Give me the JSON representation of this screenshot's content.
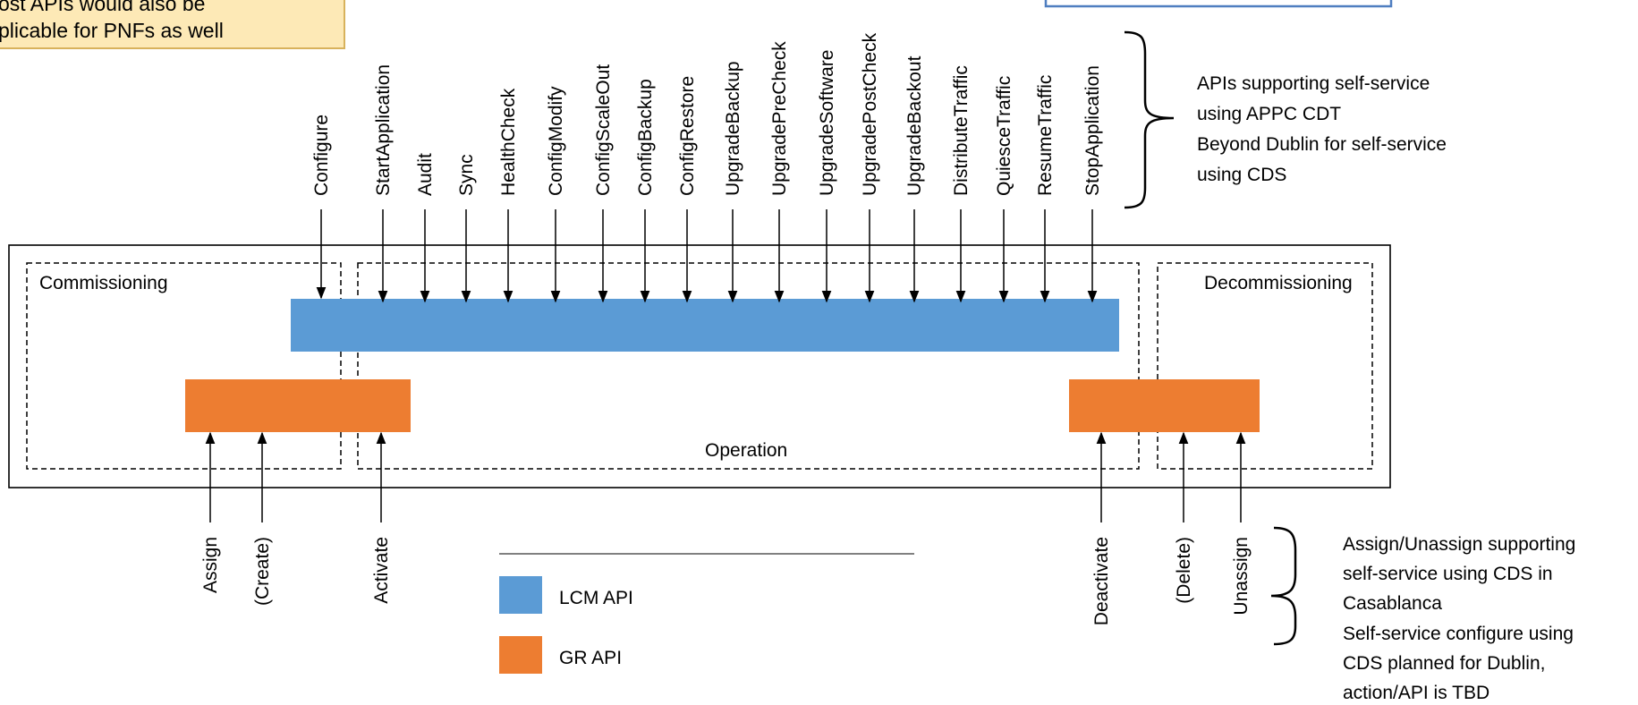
{
  "note_box": {
    "line1": "ost APIs would also be",
    "line2": "plicable for PNFs as well"
  },
  "top_apis": [
    "Configure",
    "StartApplication",
    "Audit",
    "Sync",
    "HealthCheck",
    "ConfigModify",
    "ConfigScaleOut",
    "ConfigBackup",
    "ConfigRestore",
    "UpgradeBackup",
    "UpgradePreCheck",
    "UpgradeSoftware",
    "UpgradePostCheck",
    "UpgradeBackout",
    "DistributeTraffic",
    "QuiesceTraffic",
    "ResumeTraffic",
    "StopApplication"
  ],
  "bottom_apis": [
    "Assign",
    "(Create)",
    "Activate",
    "Deactivate",
    "(Delete)",
    "Unassign"
  ],
  "phases": {
    "commissioning": "Commissioning",
    "operation": "Operation",
    "decommissioning": "Decommissioning"
  },
  "top_note": [
    "APIs supporting self-service",
    "using APPC CDT",
    "Beyond Dublin for self-service",
    "using CDS"
  ],
  "bottom_note": [
    "Assign/Unassign supporting",
    "self-service using CDS in",
    "Casablanca",
    "Self-service configure using",
    "CDS planned for Dublin,",
    "action/API is TBD"
  ],
  "legend": {
    "lcm": "LCM API",
    "gr": "GR API"
  },
  "colors": {
    "lcm": "#5b9bd5",
    "gr": "#ed7d31",
    "note_fill": "#fde9b6",
    "note_border": "#d8b25c",
    "info_box_border": "#4f7ec0"
  }
}
